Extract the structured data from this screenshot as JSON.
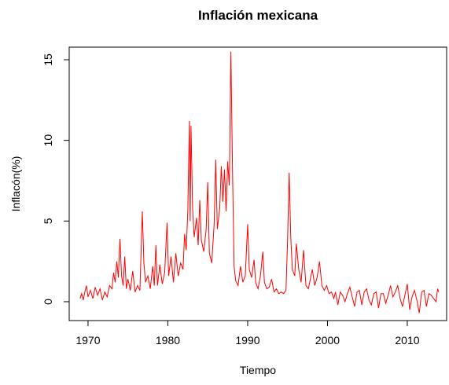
{
  "chart_data": {
    "type": "line",
    "title": "Inflación mexicana",
    "x_label": "Tiempo",
    "y_label": "Inflacón(%)",
    "x": [
      1969.0,
      1969.2,
      1969.4,
      1969.6,
      1969.8,
      1970.0,
      1970.3,
      1970.6,
      1970.9,
      1971.2,
      1971.5,
      1971.8,
      1972.1,
      1972.4,
      1972.7,
      1973.0,
      1973.2,
      1973.4,
      1973.6,
      1973.8,
      1974.0,
      1974.2,
      1974.4,
      1974.6,
      1974.8,
      1975.0,
      1975.3,
      1975.6,
      1975.9,
      1976.2,
      1976.5,
      1976.8,
      1977.0,
      1977.2,
      1977.5,
      1977.8,
      1978.1,
      1978.3,
      1978.5,
      1978.7,
      1979.0,
      1979.3,
      1979.6,
      1979.9,
      1980.1,
      1980.4,
      1980.7,
      1981.0,
      1981.3,
      1981.6,
      1981.9,
      1982.1,
      1982.3,
      1982.5,
      1982.7,
      1982.8,
      1982.9,
      1983.1,
      1983.3,
      1983.6,
      1983.8,
      1984.0,
      1984.2,
      1984.5,
      1984.8,
      1985.0,
      1985.2,
      1985.5,
      1985.8,
      1986.0,
      1986.2,
      1986.5,
      1986.7,
      1986.9,
      1987.1,
      1987.3,
      1987.5,
      1987.7,
      1987.9,
      1988.1,
      1988.3,
      1988.5,
      1988.8,
      1989.1,
      1989.4,
      1989.7,
      1990.0,
      1990.2,
      1990.5,
      1990.8,
      1991.0,
      1991.3,
      1991.6,
      1991.9,
      1992.1,
      1992.4,
      1992.7,
      1993.0,
      1993.3,
      1993.6,
      1993.9,
      1994.2,
      1994.5,
      1994.8,
      1995.0,
      1995.2,
      1995.4,
      1995.6,
      1995.9,
      1996.1,
      1996.4,
      1996.7,
      1997.0,
      1997.3,
      1997.6,
      1997.9,
      1998.1,
      1998.4,
      1998.7,
      1999.0,
      1999.3,
      1999.6,
      1999.9,
      2000.2,
      2000.5,
      2000.8,
      2001.0,
      2001.3,
      2001.6,
      2001.9,
      2002.2,
      2002.5,
      2002.8,
      2003.1,
      2003.4,
      2003.7,
      2004.0,
      2004.3,
      2004.6,
      2004.9,
      2005.2,
      2005.5,
      2005.8,
      2006.1,
      2006.4,
      2006.7,
      2007.0,
      2007.3,
      2007.6,
      2007.9,
      2008.2,
      2008.5,
      2008.8,
      2009.1,
      2009.4,
      2009.7,
      2010.0,
      2010.3,
      2010.6,
      2010.9,
      2011.2,
      2011.5,
      2011.8,
      2012.1,
      2012.4,
      2012.7,
      2013.0,
      2013.3,
      2013.6,
      2013.8,
      2013.95
    ],
    "series": [
      {
        "color": "#ff0000",
        "values": [
          0.2,
          0.5,
          0.1,
          0.6,
          1.0,
          0.3,
          0.7,
          0.2,
          0.9,
          0.4,
          0.8,
          0.1,
          0.6,
          0.3,
          1.0,
          0.8,
          1.8,
          1.2,
          2.5,
          1.5,
          3.9,
          1.6,
          1.0,
          2.8,
          0.8,
          1.4,
          0.7,
          1.9,
          0.6,
          1.0,
          0.7,
          5.6,
          2.4,
          1.2,
          1.6,
          0.8,
          2.2,
          1.0,
          3.5,
          1.0,
          2.3,
          1.1,
          1.8,
          4.9,
          1.6,
          2.8,
          1.2,
          3.0,
          1.6,
          2.4,
          2.0,
          4.2,
          3.2,
          5.6,
          11.2,
          5.0,
          10.9,
          5.8,
          4.0,
          5.2,
          3.5,
          6.3,
          3.8,
          3.1,
          4.5,
          7.4,
          3.0,
          2.4,
          4.8,
          8.8,
          4.5,
          5.8,
          8.4,
          6.2,
          8.2,
          5.6,
          8.7,
          7.2,
          15.5,
          8.2,
          2.2,
          1.3,
          1.0,
          2.2,
          1.2,
          1.6,
          4.8,
          2.0,
          1.5,
          2.6,
          1.2,
          0.8,
          1.6,
          3.1,
          1.2,
          0.8,
          0.9,
          1.4,
          0.6,
          0.8,
          0.5,
          0.6,
          0.5,
          0.7,
          3.8,
          8.0,
          4.0,
          2.0,
          1.6,
          3.6,
          2.0,
          1.2,
          3.2,
          1.0,
          0.8,
          1.5,
          2.0,
          1.0,
          1.5,
          2.5,
          1.0,
          0.7,
          1.0,
          0.5,
          0.6,
          0.2,
          0.6,
          -0.2,
          0.6,
          0.4,
          0.0,
          0.5,
          0.9,
          0.3,
          -0.3,
          0.6,
          0.7,
          -0.2,
          0.6,
          0.8,
          0.1,
          -0.2,
          0.5,
          0.6,
          -0.4,
          0.5,
          0.5,
          -0.1,
          0.4,
          1.0,
          0.3,
          0.6,
          1.0,
          0.2,
          -0.3,
          0.4,
          1.1,
          -0.5,
          0.3,
          0.7,
          0.1,
          -0.7,
          0.6,
          0.7,
          -0.3,
          0.5,
          0.4,
          0.2,
          0.0,
          0.8,
          0.6
        ]
      }
    ],
    "xlim": [
      1967.64,
      2014.93
    ],
    "ylim": [
      -1.17,
      15.78
    ],
    "xticks": [
      1970,
      1980,
      1990,
      2000,
      2010
    ],
    "yticks": [
      0,
      5,
      10,
      15
    ]
  }
}
